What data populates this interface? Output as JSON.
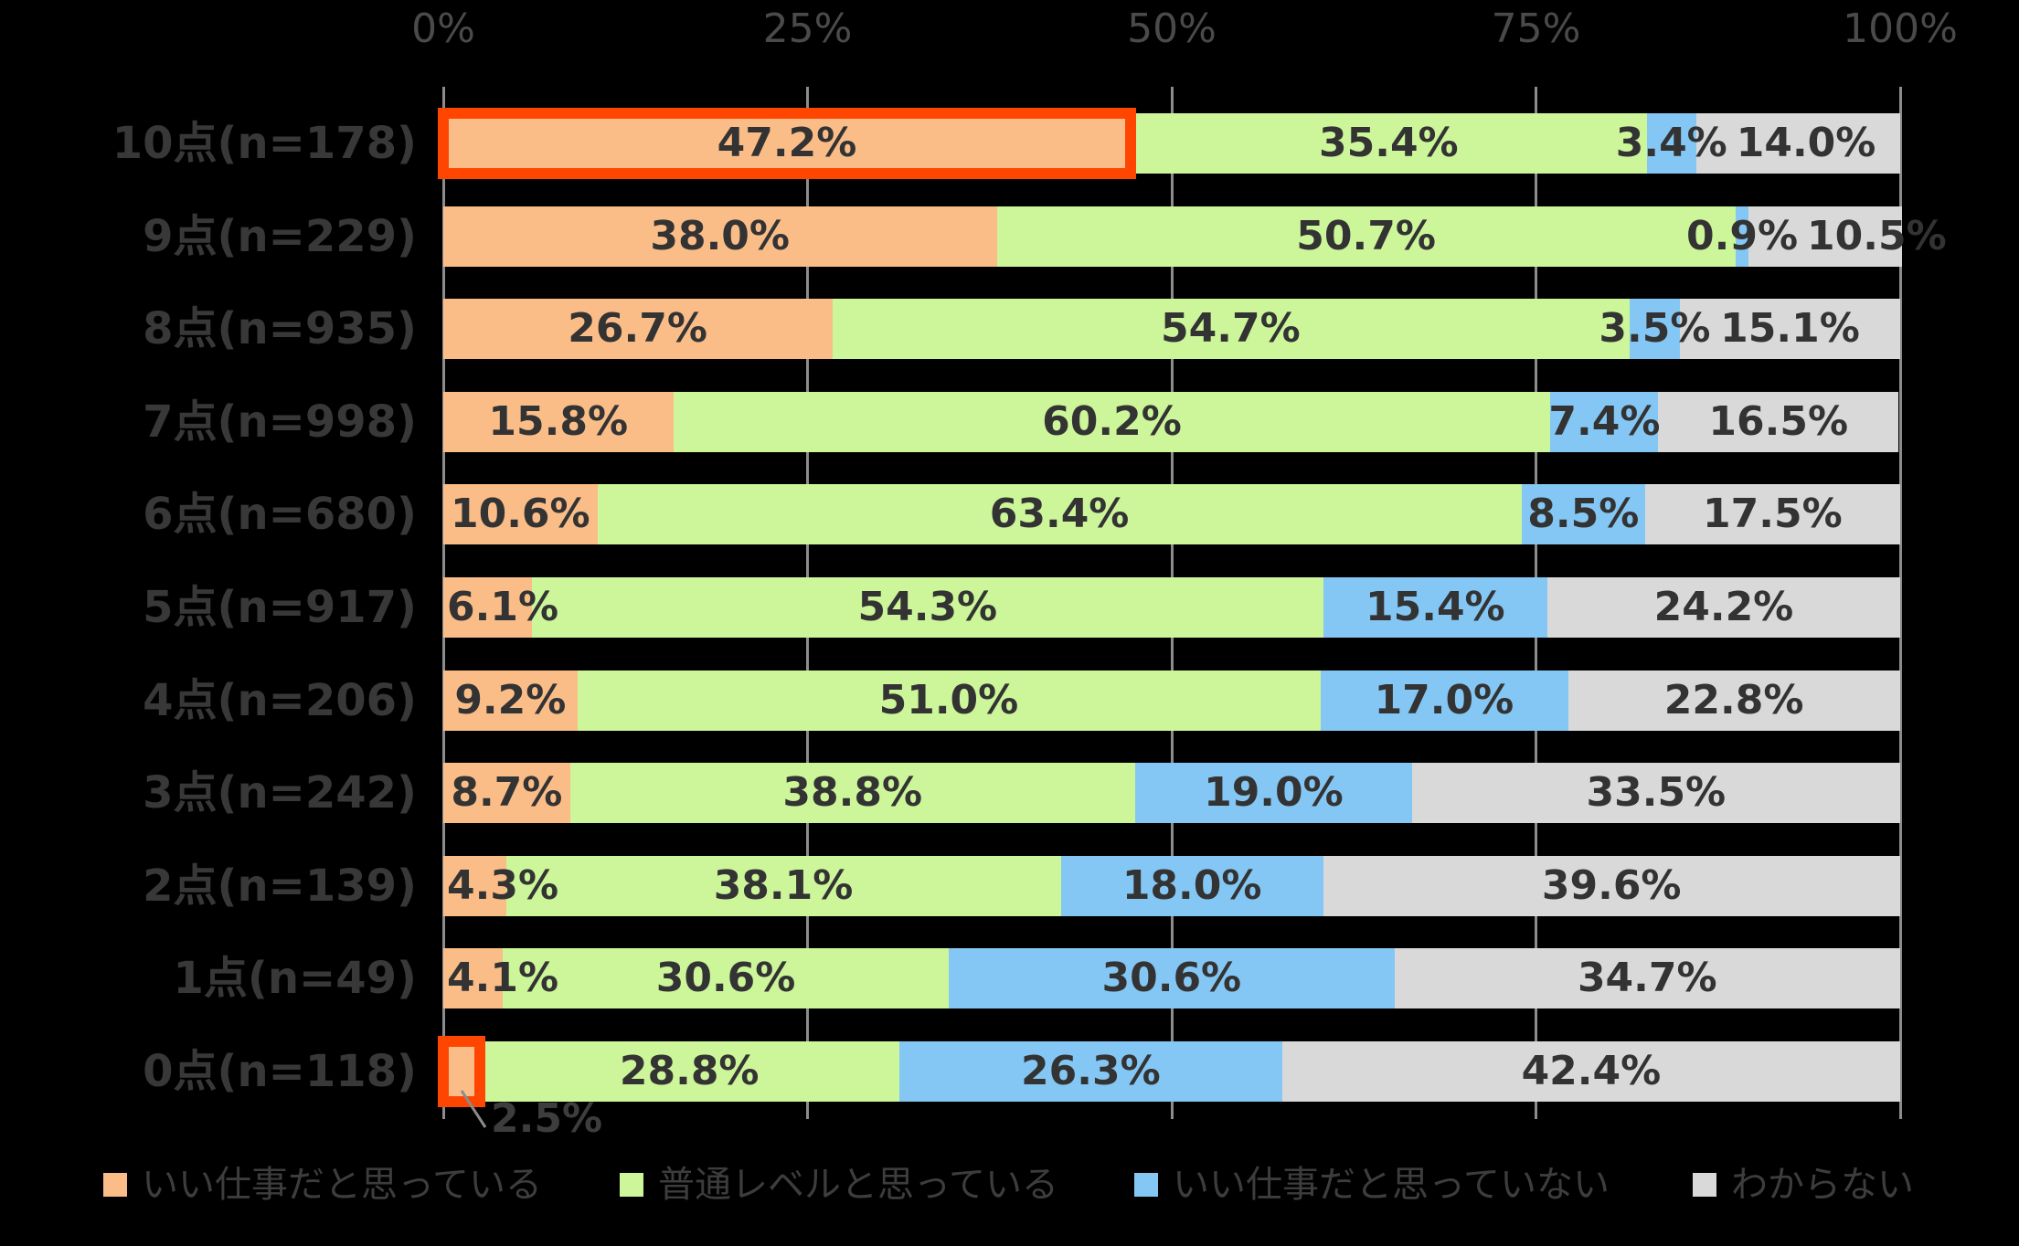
{
  "chart_data": {
    "type": "bar",
    "orientation": "horizontal-stacked",
    "title": "",
    "xlabel": "",
    "ylabel": "",
    "xlim": [
      0,
      100
    ],
    "grid": true,
    "x_axis_ticks": [
      "0%",
      "25%",
      "50%",
      "75%",
      "100%"
    ],
    "categories": [
      "10点(n=178)",
      "9点(n=229)",
      "8点(n=935)",
      "7点(n=998)",
      "6点(n=680)",
      "5点(n=917)",
      "4点(n=206)",
      "3点(n=242)",
      "2点(n=139)",
      "1点(n=49)",
      "0点(n=118)"
    ],
    "series": [
      {
        "name": "いい仕事だと思っている",
        "color": "#FBBD88",
        "values": [
          47.2,
          38.0,
          26.7,
          15.8,
          10.6,
          6.1,
          9.2,
          8.7,
          4.3,
          4.1,
          2.5
        ]
      },
      {
        "name": "普通レベルと思っている",
        "color": "#CCF699",
        "values": [
          35.4,
          50.7,
          54.7,
          60.2,
          63.4,
          54.3,
          51.0,
          38.8,
          38.1,
          30.6,
          28.8
        ]
      },
      {
        "name": "いい仕事だと思っていない",
        "color": "#84C7F4",
        "values": [
          3.4,
          0.9,
          3.5,
          7.4,
          8.5,
          15.4,
          17.0,
          19.0,
          18.0,
          30.6,
          26.3
        ]
      },
      {
        "name": "わからない",
        "color": "#D9D9D9",
        "values": [
          14.0,
          10.5,
          15.1,
          16.5,
          17.5,
          24.2,
          22.8,
          33.5,
          39.6,
          34.7,
          42.4
        ]
      }
    ],
    "data_label_format": "one-decimal-percent",
    "highlights": [
      {
        "category_index": 0,
        "series_index": 0,
        "style": "red-outline"
      },
      {
        "category_index": 10,
        "series_index": 0,
        "style": "red-outline",
        "callout_label": "2.5%"
      }
    ],
    "legend": {
      "position": "bottom",
      "entries": [
        "いい仕事だと思っている",
        "普通レベルと思っている",
        "いい仕事だと思っていない",
        "わからない"
      ]
    }
  },
  "callout": {
    "text": "2.5%"
  },
  "colors": {
    "background": "#000000",
    "data_label": "#333333",
    "category_label": "#383838",
    "axis_label": "#4A4A4A",
    "legend_label": "#3D3D3D",
    "gridline": "#8C8C8C",
    "highlight_border": "#FF4600",
    "leader_line": "#8C8C8C"
  }
}
